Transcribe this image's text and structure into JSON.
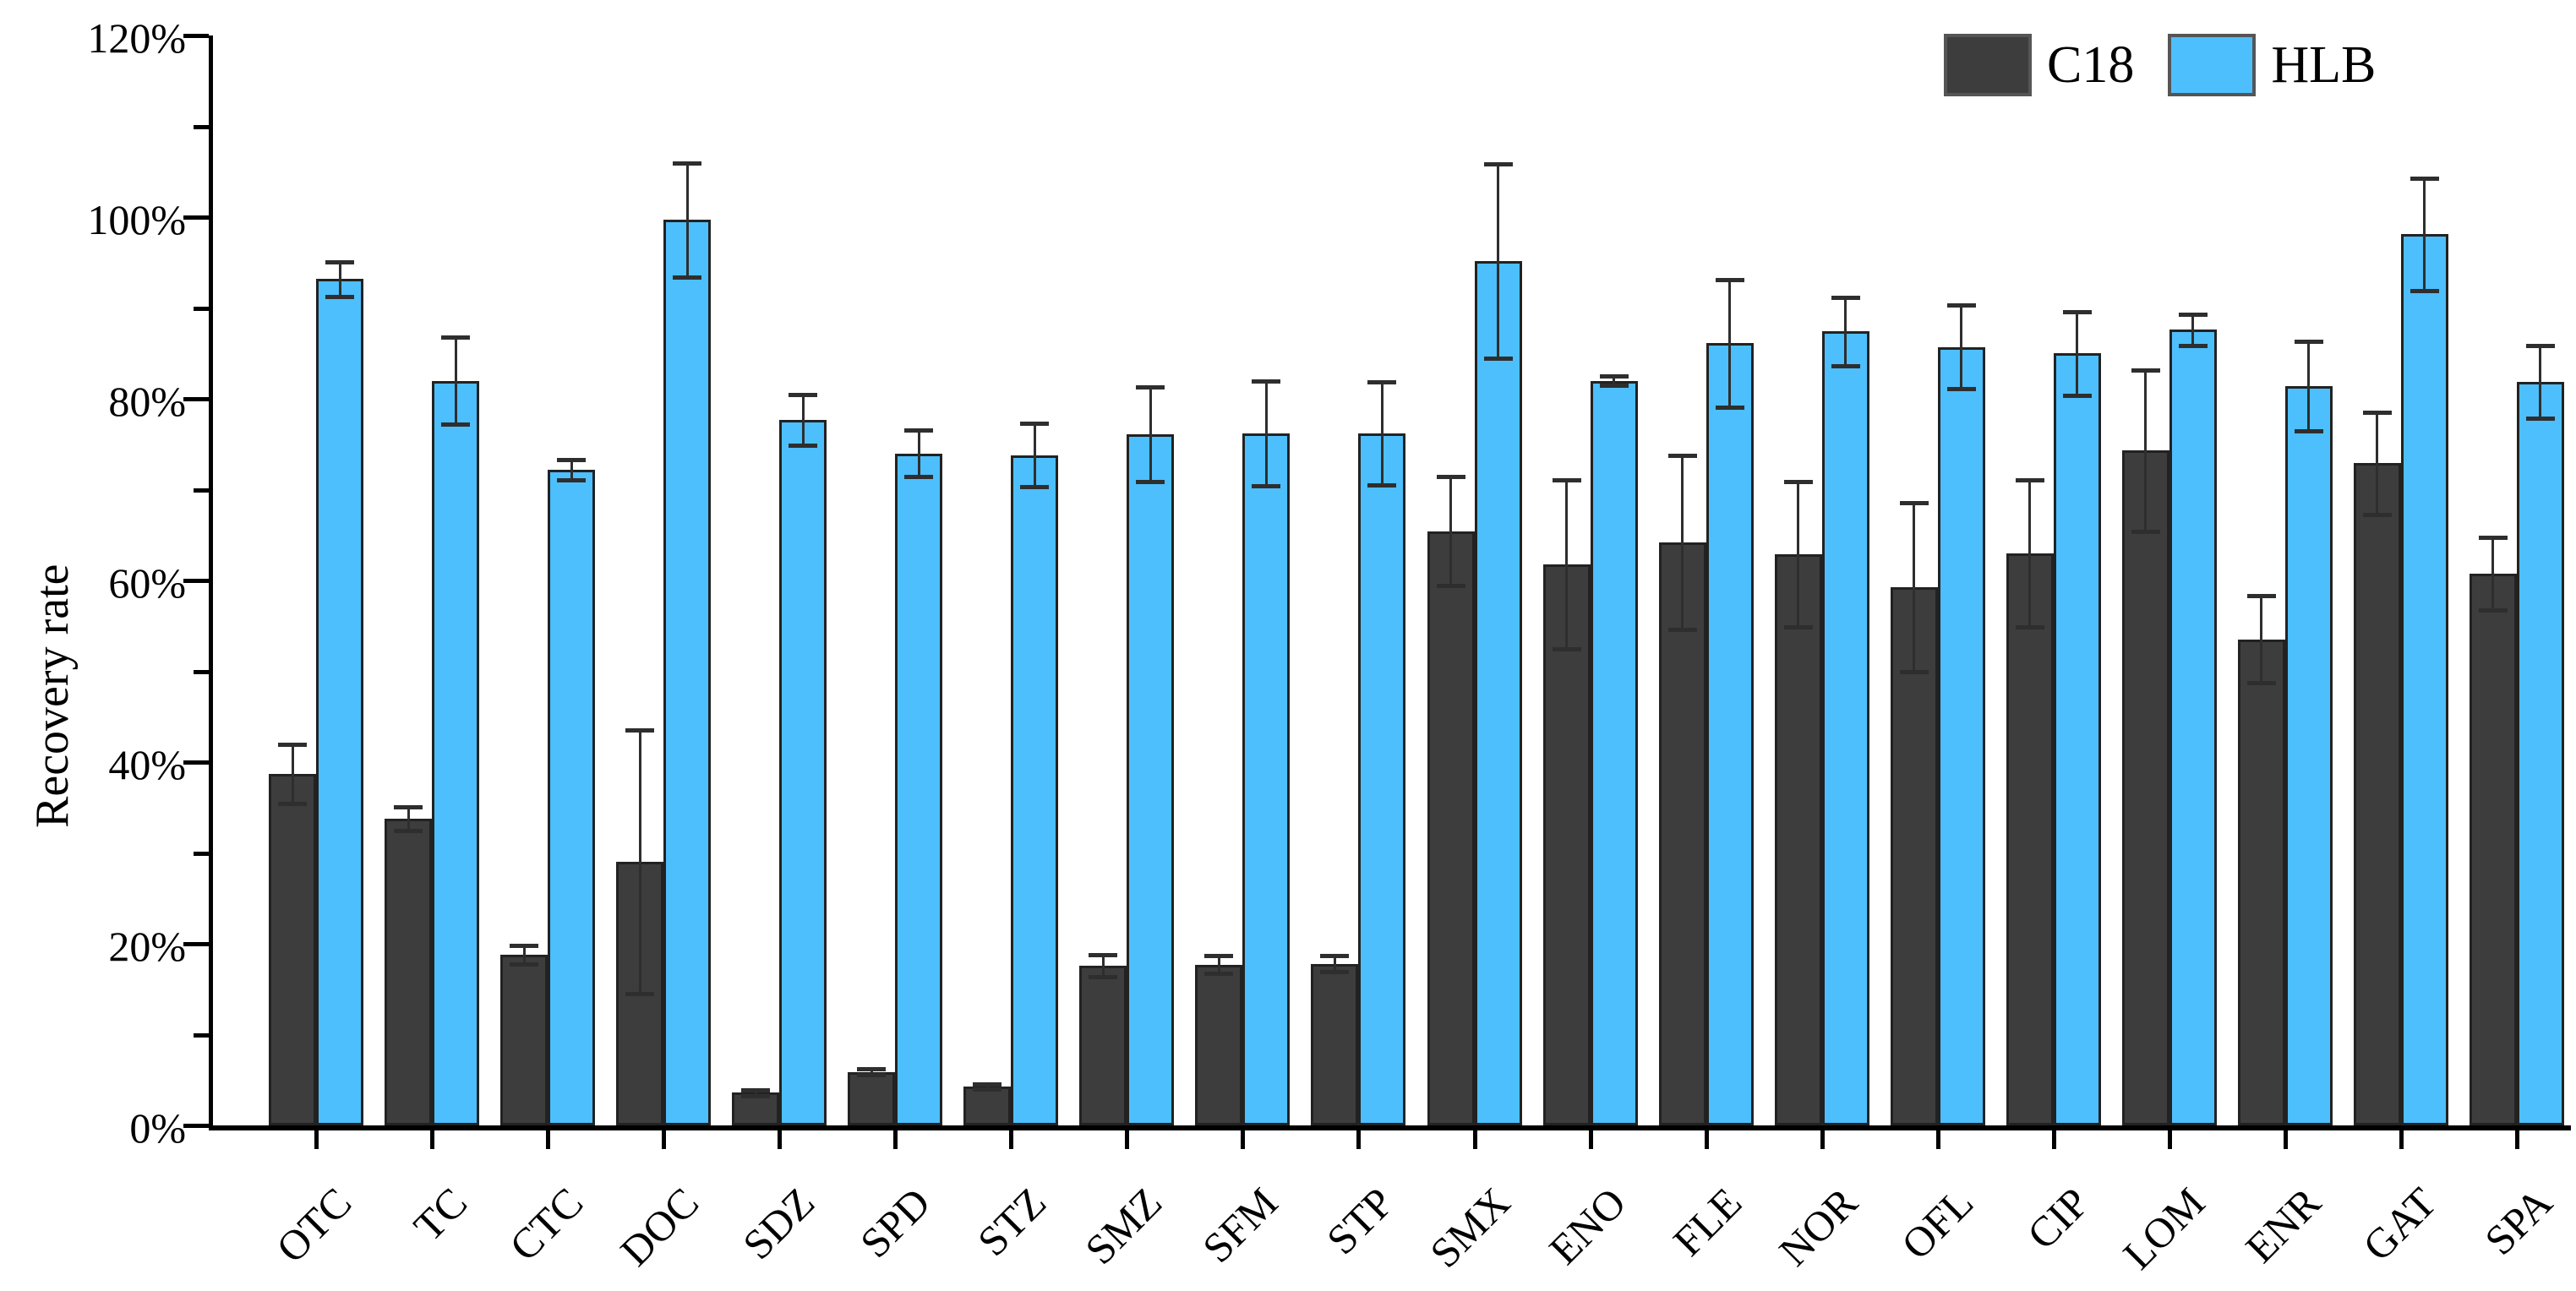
{
  "chart_data": {
    "type": "bar",
    "title": "",
    "xlabel": "",
    "ylabel": "Recovery rate",
    "ylim": [
      0,
      120
    ],
    "ytick_major_step": 20,
    "ytick_minor_step": 10,
    "ytick_labels": [
      "0%",
      "20%",
      "40%",
      "60%",
      "80%",
      "100%",
      "120%"
    ],
    "grid": false,
    "legend_position": "top-right",
    "legend_entries": [
      "C18",
      "HLB"
    ],
    "error_bars": true,
    "categories": [
      "OTC",
      "TC",
      "CTC",
      "DOC",
      "SDZ",
      "SPD",
      "STZ",
      "SMZ",
      "SFM",
      "STP",
      "SMX",
      "ENO",
      "FLE",
      "NOR",
      "OFL",
      "CIP",
      "LOM",
      "ENR",
      "GAT",
      "SPA"
    ],
    "series": [
      {
        "name": "C18",
        "color": "#3d3d3d",
        "values": [
          38.7,
          33.8,
          18.8,
          29.0,
          3.6,
          5.9,
          4.3,
          17.6,
          17.7,
          17.8,
          65.4,
          61.8,
          64.2,
          62.9,
          59.3,
          63.0,
          74.3,
          53.5,
          72.9,
          60.7
        ],
        "errors": [
          3.3,
          1.3,
          1.0,
          14.5,
          0.3,
          0.3,
          0.3,
          1.2,
          1.0,
          0.9,
          6.0,
          9.3,
          9.6,
          8.0,
          9.3,
          8.1,
          8.9,
          4.8,
          5.6,
          4.0
        ]
      },
      {
        "name": "HLB",
        "color": "#4dbffc",
        "values": [
          93.2,
          82.0,
          72.2,
          99.7,
          77.7,
          74.0,
          73.8,
          76.1,
          76.2,
          76.2,
          95.2,
          82.0,
          86.1,
          87.4,
          85.7,
          85.0,
          87.6,
          81.4,
          98.1,
          81.9
        ],
        "errors": [
          1.9,
          4.8,
          1.1,
          6.3,
          2.8,
          2.6,
          3.5,
          5.2,
          5.8,
          5.7,
          10.7,
          0.5,
          7.0,
          3.8,
          4.6,
          4.6,
          1.7,
          4.9,
          6.2,
          4.0
        ]
      }
    ]
  },
  "style": {
    "bar_border_color": "#222222",
    "error_bar_color": "#2e2e2e",
    "axis_color": "#000000",
    "background": "#ffffff"
  }
}
